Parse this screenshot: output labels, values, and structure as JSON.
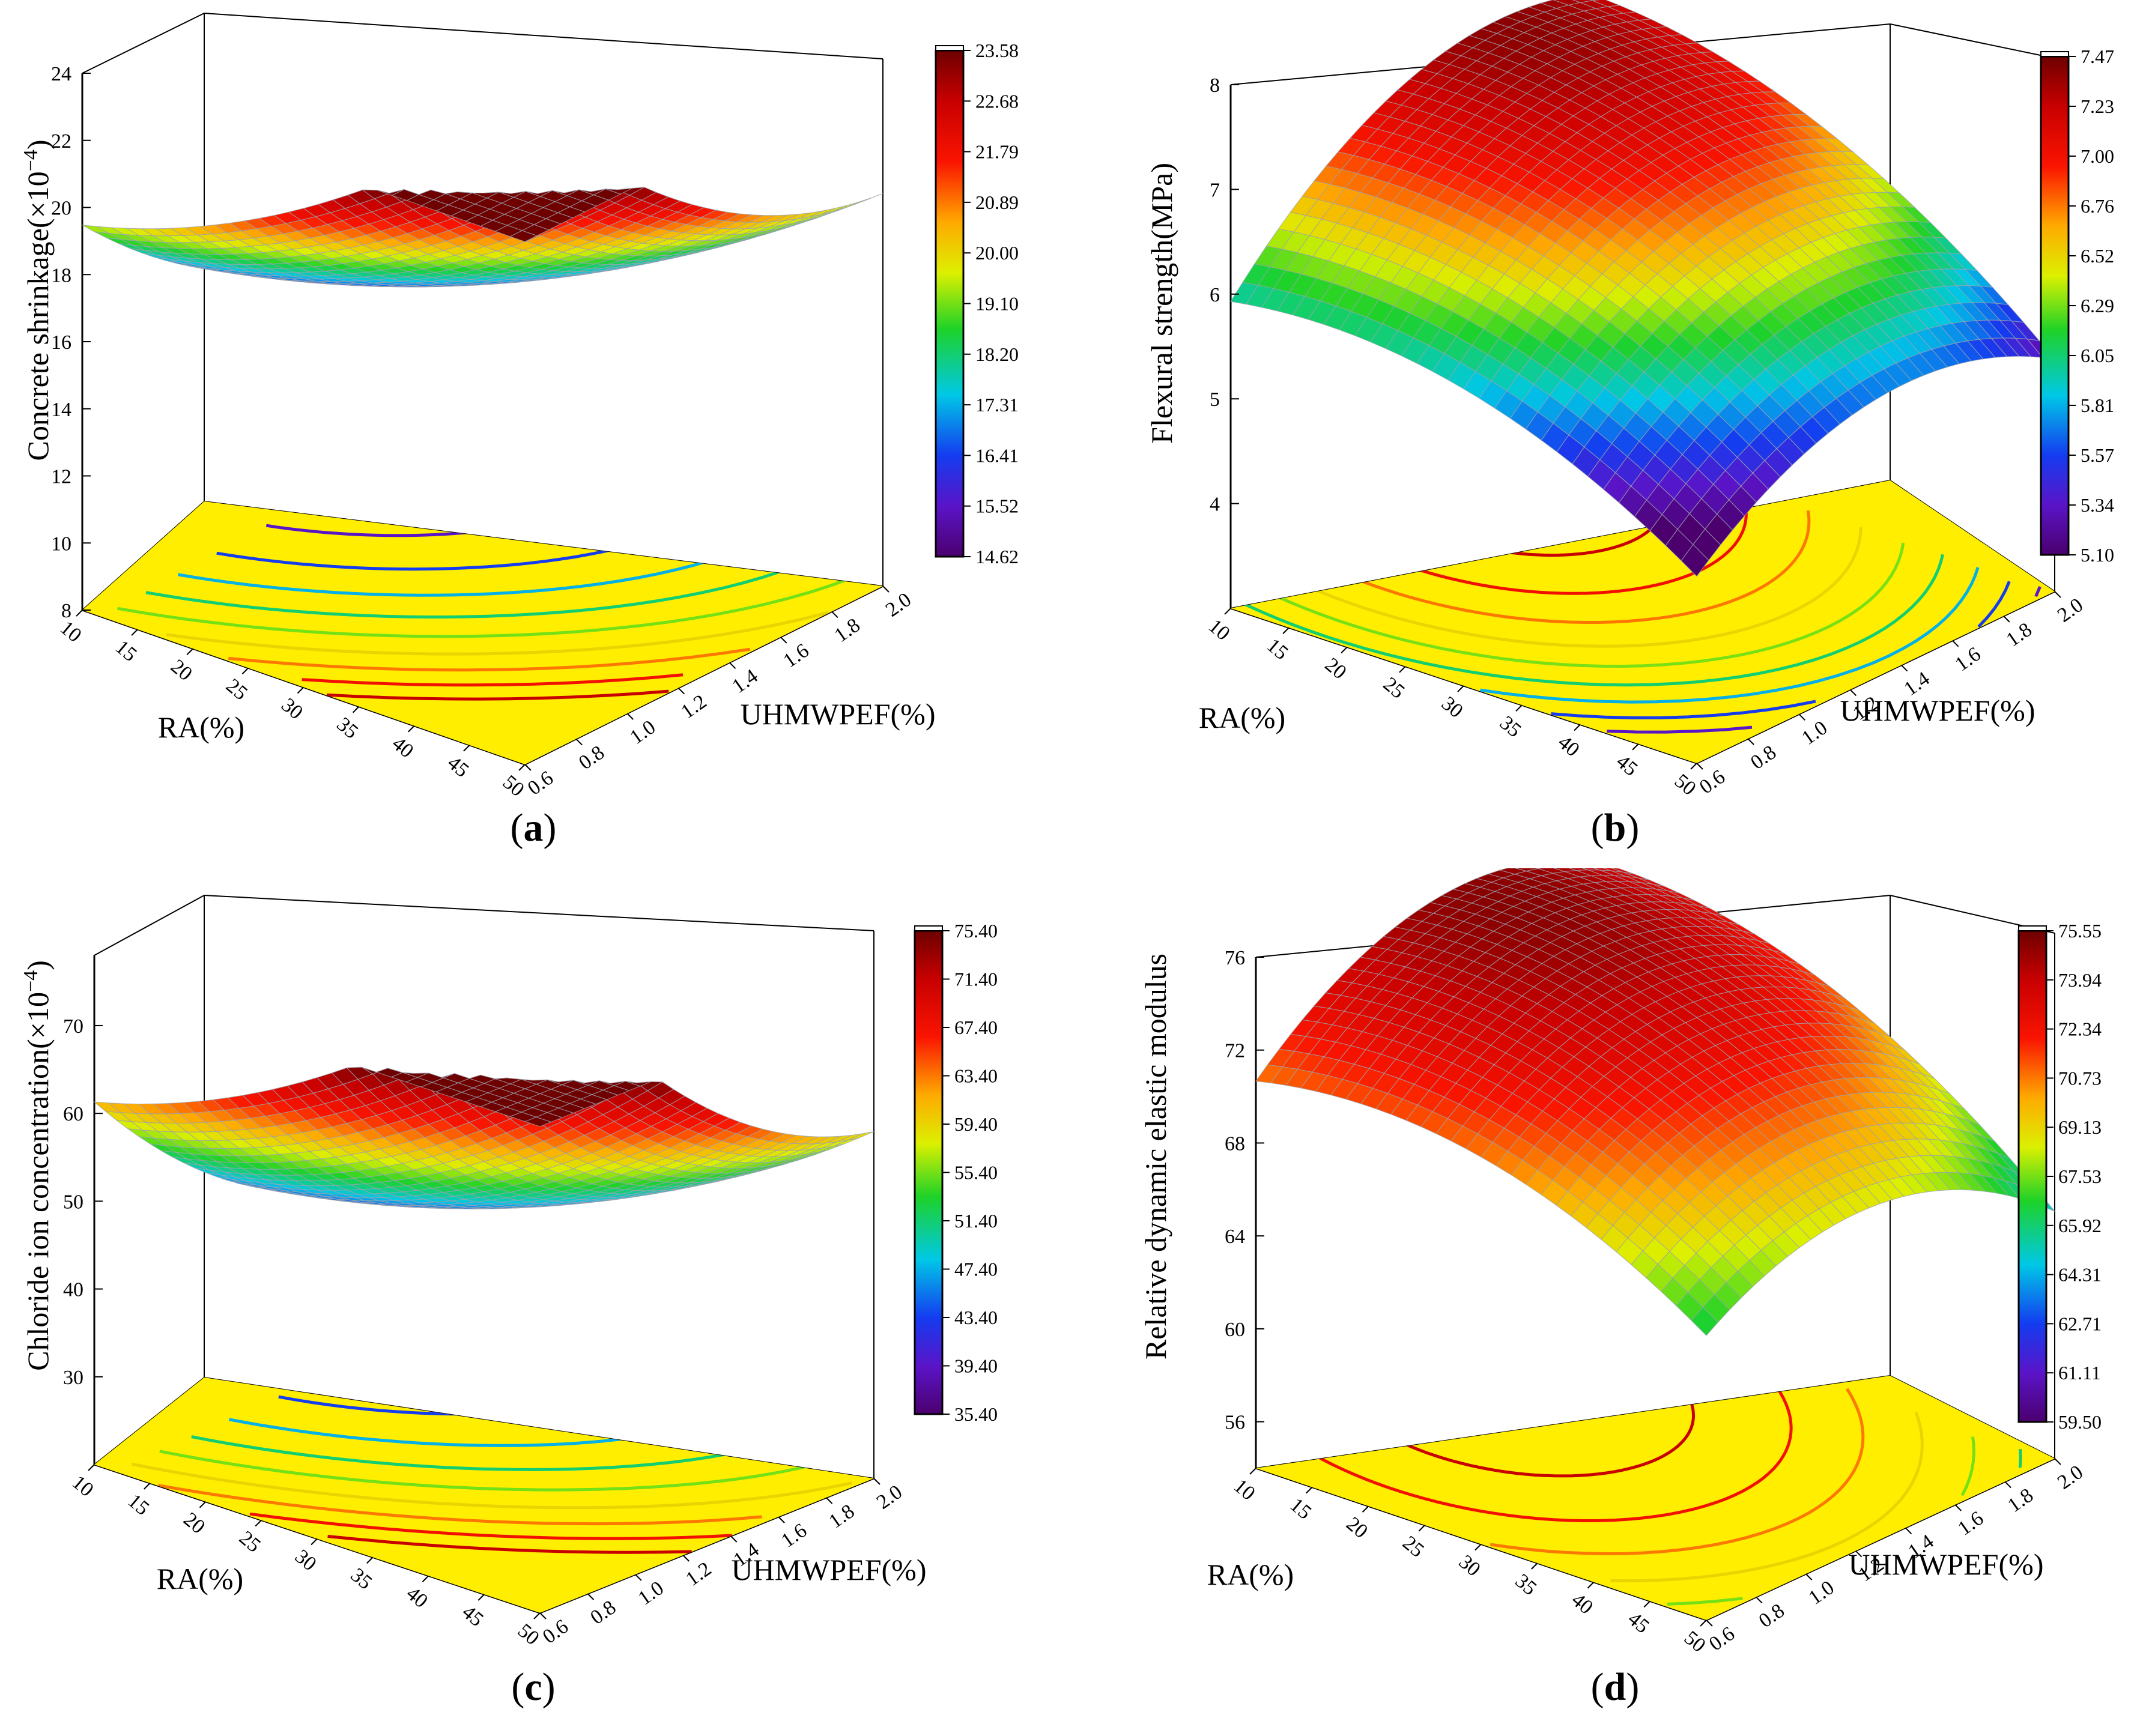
{
  "figure": {
    "panels": [
      {
        "id": "a",
        "letter": "a"
      },
      {
        "id": "b",
        "letter": "b"
      },
      {
        "id": "c",
        "letter": "c"
      },
      {
        "id": "d",
        "letter": "d"
      }
    ]
  },
  "chart_data": [
    {
      "panel": "a",
      "type": "surface3d",
      "zlabel": "Concrete shrinkage(×10",
      "zlabel_exp": "−4",
      "zlabel_close": ")",
      "xlabel": "RA(%)",
      "ylabel": "UHMWPEF(%)",
      "z_ticks": [
        "8",
        "10",
        "12",
        "14",
        "16",
        "18",
        "20",
        "22",
        "24"
      ],
      "zlim": [
        8,
        24
      ],
      "x_ticks": [
        "10",
        "15",
        "20",
        "25",
        "30",
        "35",
        "40",
        "45",
        "50"
      ],
      "xlim": [
        10,
        50
      ],
      "y_ticks": [
        "0.6",
        "0.8",
        "1.0",
        "1.2",
        "1.4",
        "1.6",
        "1.8",
        "2.0"
      ],
      "ylim": [
        0.6,
        2.0
      ],
      "colorbar_ticks": [
        "23.58",
        "22.68",
        "21.79",
        "20.89",
        "20.00",
        "19.10",
        "18.20",
        "17.31",
        "16.41",
        "15.52",
        "14.62"
      ],
      "colorbar_range": [
        14.62,
        23.58
      ],
      "surface_model": {
        "z0": 14.62,
        "zmax": 23.58,
        "x_opt": 0.0,
        "y_opt": 0.85,
        "x_lin": 0.0,
        "y_lin": 0.0,
        "a": 8.9,
        "b": 0.6,
        "concave": true,
        "zbase": 8
      },
      "contour_levels": [
        15.52,
        16.41,
        17.31,
        18.2,
        19.1,
        20.0,
        20.89,
        21.79,
        22.68
      ]
    },
    {
      "panel": "b",
      "type": "surface3d",
      "zlabel": "Flexural strength(MPa)",
      "zlabel_exp": "",
      "zlabel_close": "",
      "xlabel": "RA(%)",
      "ylabel": "UHMWPEF(%)",
      "z_ticks": [
        "4",
        "5",
        "6",
        "7",
        "8"
      ],
      "zlim": [
        3,
        8
      ],
      "x_ticks": [
        "10",
        "15",
        "20",
        "25",
        "30",
        "35",
        "40",
        "45",
        "50"
      ],
      "xlim": [
        10,
        50
      ],
      "y_ticks": [
        "0.6",
        "0.8",
        "1.0",
        "1.2",
        "1.4",
        "1.6",
        "1.8",
        "2.0"
      ],
      "ylim": [
        0.6,
        2.0
      ],
      "colorbar_ticks": [
        "7.47",
        "7.23",
        "7.00",
        "6.76",
        "6.52",
        "6.29",
        "6.05",
        "5.81",
        "5.57",
        "5.34",
        "5.10"
      ],
      "colorbar_range": [
        5.1,
        7.47
      ],
      "surface_model": {
        "z0": 7.47,
        "zmin": 4.0,
        "x_opt": 0.2,
        "y_opt": 0.75,
        "a": 1.5,
        "b": 2.4,
        "concave": false,
        "zbase": 3
      },
      "contour_levels": [
        5.34,
        5.57,
        5.81,
        6.05,
        6.29,
        6.52,
        6.76,
        7.0,
        7.23
      ]
    },
    {
      "panel": "c",
      "type": "surface3d",
      "zlabel": "Chloride ion concentration(×10",
      "zlabel_exp": "−4",
      "zlabel_close": ")",
      "xlabel": "RA(%)",
      "ylabel": "UHMWPEF(%)",
      "z_ticks": [
        "30",
        "40",
        "50",
        "60",
        "70"
      ],
      "zlim": [
        20,
        78
      ],
      "x_ticks": [
        "10",
        "15",
        "20",
        "25",
        "30",
        "35",
        "40",
        "45",
        "50"
      ],
      "xlim": [
        10,
        50
      ],
      "y_ticks": [
        "0.6",
        "0.8",
        "1.0",
        "1.2",
        "1.4",
        "1.6",
        "1.8",
        "2.0"
      ],
      "ylim": [
        0.6,
        2.0
      ],
      "colorbar_ticks": [
        "75.40",
        "71.40",
        "67.40",
        "63.40",
        "59.40",
        "55.40",
        "51.40",
        "47.40",
        "43.40",
        "39.40",
        "35.40"
      ],
      "colorbar_range": [
        35.4,
        75.4
      ],
      "surface_model": {
        "z0": 39.5,
        "zmax": 75.4,
        "x_opt": 0.0,
        "y_opt": 0.9,
        "a": 36.0,
        "b": 2.0,
        "concave": true,
        "zbase": 20
      },
      "contour_levels": [
        39.4,
        43.4,
        47.4,
        51.4,
        55.4,
        59.4,
        63.4,
        67.4,
        71.4
      ]
    },
    {
      "panel": "d",
      "type": "surface3d",
      "zlabel": "Relative dynamic elastic modulus",
      "zlabel_exp": "",
      "zlabel_close": "",
      "xlabel": "RA(%)",
      "ylabel": "UHMWPEF(%)",
      "z_ticks": [
        "56",
        "60",
        "64",
        "68",
        "72",
        "76"
      ],
      "zlim": [
        54,
        76
      ],
      "x_ticks": [
        "10",
        "15",
        "20",
        "25",
        "30",
        "35",
        "40",
        "45",
        "50"
      ],
      "xlim": [
        10,
        50
      ],
      "y_ticks": [
        "0.6",
        "0.8",
        "1.0",
        "1.2",
        "1.4",
        "1.6",
        "1.8",
        "2.0"
      ],
      "ylim": [
        0.6,
        2.0
      ],
      "colorbar_ticks": [
        "75.55",
        "73.94",
        "72.34",
        "70.73",
        "69.13",
        "67.53",
        "65.92",
        "64.31",
        "62.71",
        "61.11",
        "59.50"
      ],
      "colorbar_range": [
        59.5,
        75.55
      ],
      "surface_model": {
        "z0": 75.55,
        "zmin": 59.5,
        "x_opt": 0.25,
        "y_opt": 0.6,
        "a": 9.0,
        "b": 14.0,
        "concave": false,
        "zbase": 54
      },
      "contour_levels": [
        61.11,
        62.71,
        64.31,
        65.92,
        67.53,
        69.13,
        70.73,
        72.34,
        73.94
      ]
    }
  ]
}
